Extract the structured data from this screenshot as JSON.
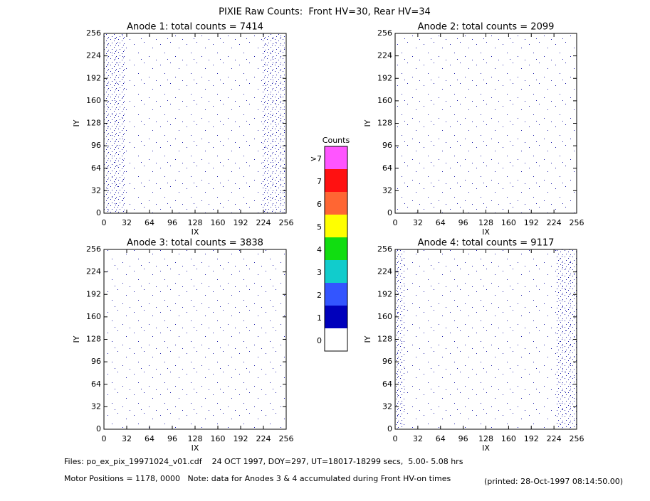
{
  "title": "PIXIE Raw Counts:  Front HV=30, Rear HV=34",
  "chart_data": [
    {
      "type": "scatter",
      "title": "Anode 1: total counts = 7414",
      "x_label": "IX",
      "y_label": "IY",
      "xlim": [
        0,
        256
      ],
      "ylim": [
        0,
        256
      ],
      "xticks": [
        0,
        32,
        64,
        96,
        128,
        160,
        192,
        224,
        256
      ],
      "yticks": [
        0,
        32,
        64,
        96,
        128,
        160,
        192,
        224,
        256
      ]
    },
    {
      "type": "scatter",
      "title": "Anode 2: total counts = 2099",
      "x_label": "IX",
      "y_label": "IY",
      "xlim": [
        0,
        256
      ],
      "ylim": [
        0,
        256
      ],
      "xticks": [
        0,
        32,
        64,
        96,
        128,
        160,
        192,
        224,
        256
      ],
      "yticks": [
        0,
        32,
        64,
        96,
        128,
        160,
        192,
        224,
        256
      ]
    },
    {
      "type": "scatter",
      "title": "Anode 3: total counts = 3838",
      "x_label": "IX",
      "y_label": "IY",
      "xlim": [
        0,
        256
      ],
      "ylim": [
        0,
        256
      ],
      "xticks": [
        0,
        32,
        64,
        96,
        128,
        160,
        192,
        224,
        256
      ],
      "yticks": [
        0,
        32,
        64,
        96,
        128,
        160,
        192,
        224,
        256
      ]
    },
    {
      "type": "scatter",
      "title": "Anode 4: total counts = 9117",
      "x_label": "IX",
      "y_label": "IY",
      "xlim": [
        0,
        256
      ],
      "ylim": [
        0,
        256
      ],
      "xticks": [
        0,
        32,
        64,
        96,
        128,
        160,
        192,
        224,
        256
      ],
      "yticks": [
        0,
        32,
        64,
        96,
        128,
        160,
        192,
        224,
        256
      ]
    }
  ],
  "colorbar": {
    "title": "Counts",
    "levels": [
      {
        "label": 0,
        "color": "#ffffff"
      },
      {
        "label": 1,
        "color": "#0000bb"
      },
      {
        "label": 2,
        "color": "#3355ff"
      },
      {
        "label": 3,
        "color": "#11cccc"
      },
      {
        "label": 4,
        "color": "#11dd11"
      },
      {
        "label": 5,
        "color": "#ffff00"
      },
      {
        "label": 6,
        "color": "#ff6633"
      },
      {
        "label": 7,
        "color": "#ff1111"
      },
      {
        "label": ">7",
        "color": "#ff55ff"
      }
    ]
  },
  "footer": {
    "files": "Files: po_ex_pix_19971024_v01.cdf    24 OCT 1997, DOY=297, UT=18017-18299 secs,  5.00- 5.08 hrs",
    "motor": "Motor Positions = 1178, 0000   Note: data for Anodes 3 & 4 accumulated during Front HV-on times",
    "printed": "(printed: 28-Oct-1997 08:14:50.00)"
  }
}
